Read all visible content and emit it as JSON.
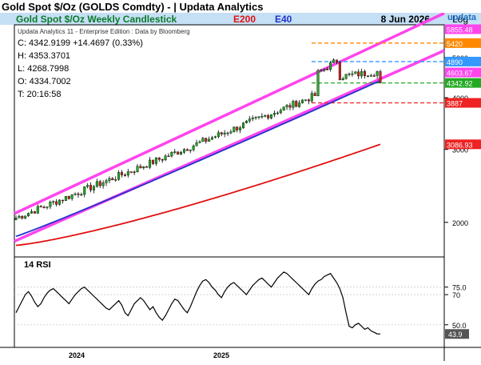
{
  "page_title": "Gold Spot   $/Oz (GOLDS Comdty) - | Updata Analytics",
  "brand": {
    "name": "updata",
    "accent": "#1f6fbf"
  },
  "colors": {
    "header_bg": "#c5dff4",
    "header_title": "#0a7a2a",
    "e200": "#e01010",
    "e40": "#2233cc",
    "channel": "#ff44ee",
    "candle_up": "#22aa22",
    "candle_down": "#cc2222",
    "rsi_line": "#000000",
    "grid": "#cccccc"
  },
  "header": {
    "chart_title": "Gold Spot  $/Oz Weekly Candlestick",
    "legend_e200": "E200",
    "legend_e40": "E40",
    "date": "8 Jun 2026",
    "scale_label": "Log"
  },
  "info": {
    "source": "Updata Analytics 11 - Enterprise Edition : Data by Bloomberg",
    "close": "C: 4342.9199  +14.4697 (0.33%)",
    "high": "H: 4353.3701",
    "low": "L: 4268.7998",
    "open": "O: 4334.7002",
    "time": "T: 20:16:58"
  },
  "chart_data": [
    {
      "type": "candlestick",
      "y_scale": "log",
      "ylim": [
        1650,
        6000
      ],
      "x_axis_labels": [
        "2024",
        "2025"
      ],
      "y_ticks": [
        2000,
        3000,
        4000,
        5000
      ],
      "right_axis_tags": [
        {
          "text": "5855.48",
          "value": 5855.48,
          "color": "#ff44ee"
        },
        {
          "text": "5420",
          "value": 5420,
          "color": "#ff8800"
        },
        {
          "text": "4890",
          "value": 4890,
          "color": "#3399ff"
        },
        {
          "text": "4603.67",
          "value": 4603.67,
          "color": "#ff44ee"
        },
        {
          "text": "4342.92",
          "value": 4342.92,
          "color": "#22aa22"
        },
        {
          "text": "3887",
          "value": 3887,
          "color": "#ee2222"
        },
        {
          "text": "3086.93",
          "value": 3086.93,
          "color": "#ee2222"
        }
      ],
      "horizontal_levels": [
        {
          "value": 5420,
          "color": "#ff8800"
        },
        {
          "value": 4890,
          "color": "#3399ff"
        },
        {
          "value": 4342.92,
          "color": "#22aa22"
        },
        {
          "value": 3887,
          "color": "#ee2222"
        }
      ],
      "channel_upper_start": 2100,
      "channel_upper_end": 6400,
      "channel_lower_start": 1800,
      "channel_lower_end": 5200,
      "e40_start": 1850,
      "e40_end": 4400,
      "e200_start": 1760,
      "e200_end": 3086.93,
      "last_close": 4342.92,
      "weeks": 118
    },
    {
      "type": "line",
      "title": "14 RSI",
      "ylim": [
        35,
        95
      ],
      "y_ticks": [
        50,
        70,
        75
      ],
      "y_tick_labels": [
        "50.0",
        "70",
        "75.0"
      ],
      "last_value": 43.9,
      "last_value_label": "43.9",
      "values": [
        58,
        62,
        66,
        70,
        72,
        69,
        65,
        62,
        64,
        68,
        71,
        73,
        74,
        72,
        70,
        68,
        66,
        64,
        67,
        70,
        72,
        74,
        75,
        73,
        71,
        69,
        67,
        65,
        63,
        61,
        60,
        62,
        64,
        66,
        63,
        58,
        56,
        60,
        64,
        66,
        68,
        66,
        63,
        60,
        62,
        58,
        55,
        53,
        56,
        60,
        64,
        67,
        66,
        63,
        60,
        58,
        62,
        67,
        72,
        76,
        79,
        80,
        78,
        75,
        73,
        70,
        68,
        72,
        75,
        77,
        78,
        76,
        74,
        72,
        70,
        73,
        76,
        78,
        80,
        81,
        79,
        77,
        75,
        78,
        81,
        83,
        85,
        84,
        82,
        80,
        78,
        76,
        74,
        72,
        70,
        74,
        77,
        79,
        80,
        82,
        83,
        84,
        81,
        78,
        74,
        68,
        58,
        49,
        48,
        50,
        51,
        49,
        47,
        48,
        46,
        45,
        44,
        43.9
      ]
    }
  ]
}
